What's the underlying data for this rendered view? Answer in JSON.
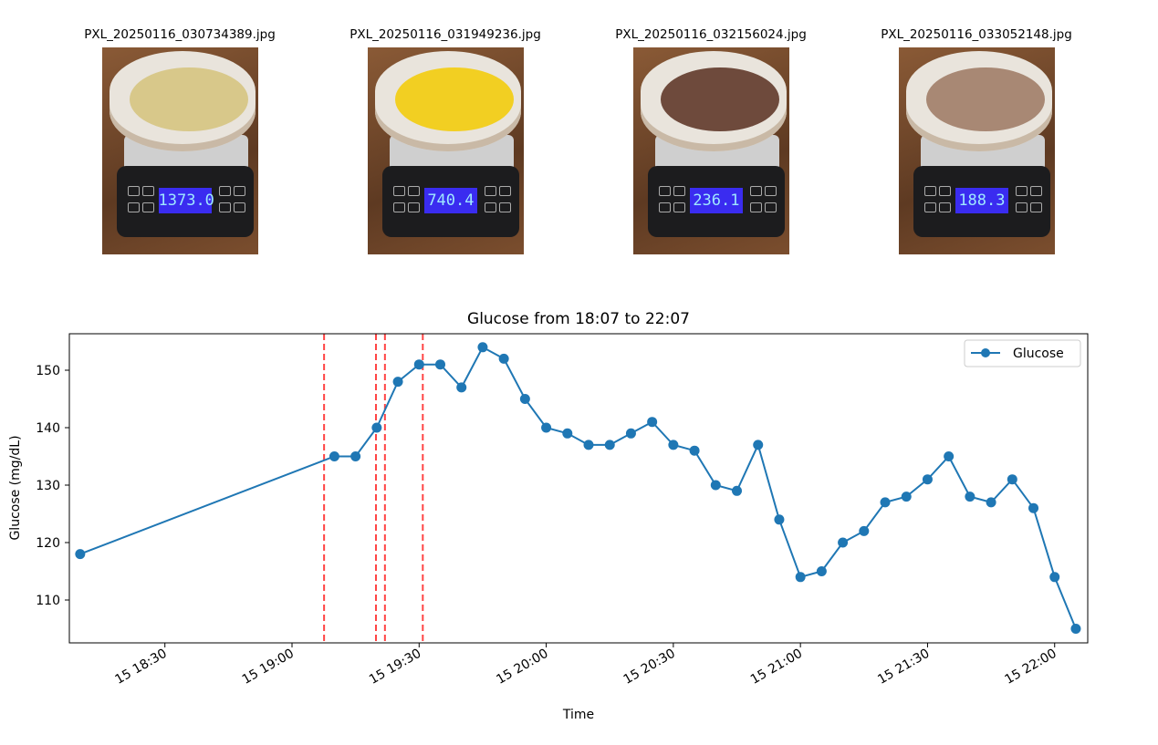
{
  "photos": [
    {
      "filename": "PXL_20250116_030734389.jpg",
      "scale_reading": "1373.0",
      "food_color": "#d8c88a"
    },
    {
      "filename": "PXL_20250116_031949236.jpg",
      "scale_reading": "740.4",
      "food_color": "#f2cf22"
    },
    {
      "filename": "PXL_20250116_032156024.jpg",
      "scale_reading": "236.1",
      "food_color": "#6e4a3c"
    },
    {
      "filename": "PXL_20250116_033052148.jpg",
      "scale_reading": "188.3",
      "food_color": "#a88874"
    }
  ],
  "chart_data": {
    "type": "line",
    "title": "Glucose from 18:07 to 22:07",
    "xlabel": "Time",
    "ylabel": "Glucose (mg/dL)",
    "xlim": [
      "18:07",
      "22:08"
    ],
    "ylim": [
      102.5,
      156.5
    ],
    "x_ticks": [
      "15 18:30",
      "15 19:00",
      "15 19:30",
      "15 20:00",
      "15 20:30",
      "15 21:00",
      "15 21:30",
      "15 22:00"
    ],
    "y_ticks": [
      110,
      120,
      130,
      140,
      150
    ],
    "legend": {
      "position": "top-right",
      "entries": [
        "Glucose"
      ]
    },
    "grid": false,
    "series": [
      {
        "name": "Glucose",
        "color": "#1f77b4",
        "x": [
          "18:10",
          "19:10",
          "19:15",
          "19:20",
          "19:25",
          "19:30",
          "19:35",
          "19:40",
          "19:45",
          "19:50",
          "19:55",
          "20:00",
          "20:05",
          "20:10",
          "20:15",
          "20:20",
          "20:25",
          "20:30",
          "20:35",
          "20:40",
          "20:45",
          "20:50",
          "20:55",
          "21:00",
          "21:05",
          "21:10",
          "21:15",
          "21:20",
          "21:25",
          "21:30",
          "21:35",
          "21:40",
          "21:45",
          "21:50",
          "21:55",
          "22:00",
          "22:05"
        ],
        "values": [
          118,
          135,
          135,
          140,
          148,
          151,
          151,
          147,
          154,
          152,
          145,
          140,
          139,
          137,
          137,
          139,
          141,
          137,
          136,
          130,
          129,
          137,
          124,
          114,
          115,
          120,
          122,
          127,
          128,
          131,
          135,
          128,
          127,
          131,
          126,
          114,
          105
        ]
      }
    ],
    "vlines": {
      "color": "#ff4444",
      "x": [
        "19:07:34",
        "19:19:49",
        "19:21:56",
        "19:30:52"
      ]
    }
  }
}
